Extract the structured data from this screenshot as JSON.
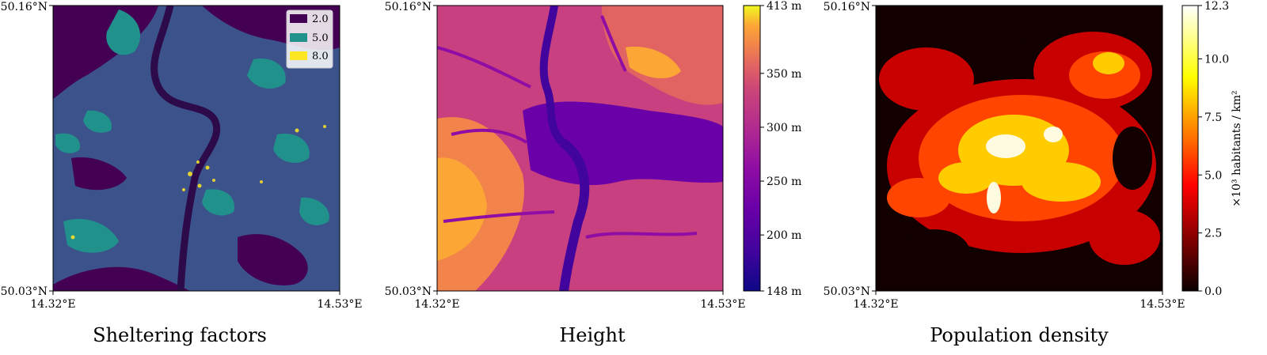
{
  "chart_data": [
    {
      "type": "heatmap",
      "title": "Sheltering factors",
      "x_ticks": [
        "14.32°E",
        "14.53°E"
      ],
      "y_ticks": [
        "50.16°N",
        "50.03°N"
      ],
      "legend": {
        "placement": "top-right",
        "entries": [
          {
            "label": "2.0",
            "color": "#440154"
          },
          {
            "label": "5.0",
            "color": "#21918c"
          },
          {
            "label": "8.0",
            "color": "#fde725"
          }
        ]
      }
    },
    {
      "type": "heatmap",
      "title": "Height",
      "x_ticks": [
        "14.32°E",
        "14.53°E"
      ],
      "y_ticks": [
        "50.16°N",
        "50.03°N"
      ],
      "colorbar": {
        "colormap": "plasma",
        "range": [
          148,
          413
        ],
        "ticks": [
          {
            "value": 148,
            "label": "148 m"
          },
          {
            "value": 200,
            "label": "200 m"
          },
          {
            "value": 250,
            "label": "250 m"
          },
          {
            "value": 300,
            "label": "300 m"
          },
          {
            "value": 350,
            "label": "350 m"
          },
          {
            "value": 413,
            "label": "413 m"
          }
        ]
      }
    },
    {
      "type": "heatmap",
      "title": "Population density",
      "x_ticks": [
        "14.32°E",
        "14.53°E"
      ],
      "y_ticks": [
        "50.16°N",
        "50.03°N"
      ],
      "colorbar": {
        "colormap": "hot",
        "range": [
          0,
          12.3
        ],
        "label": "×10³ habitants / km²",
        "ticks": [
          {
            "value": 0,
            "label": "0.0"
          },
          {
            "value": 2.5,
            "label": "2.5"
          },
          {
            "value": 5,
            "label": "5.0"
          },
          {
            "value": 7.5,
            "label": "7.5"
          },
          {
            "value": 10,
            "label": "10.0"
          },
          {
            "value": 12.3,
            "label": "12.3"
          }
        ]
      }
    }
  ]
}
